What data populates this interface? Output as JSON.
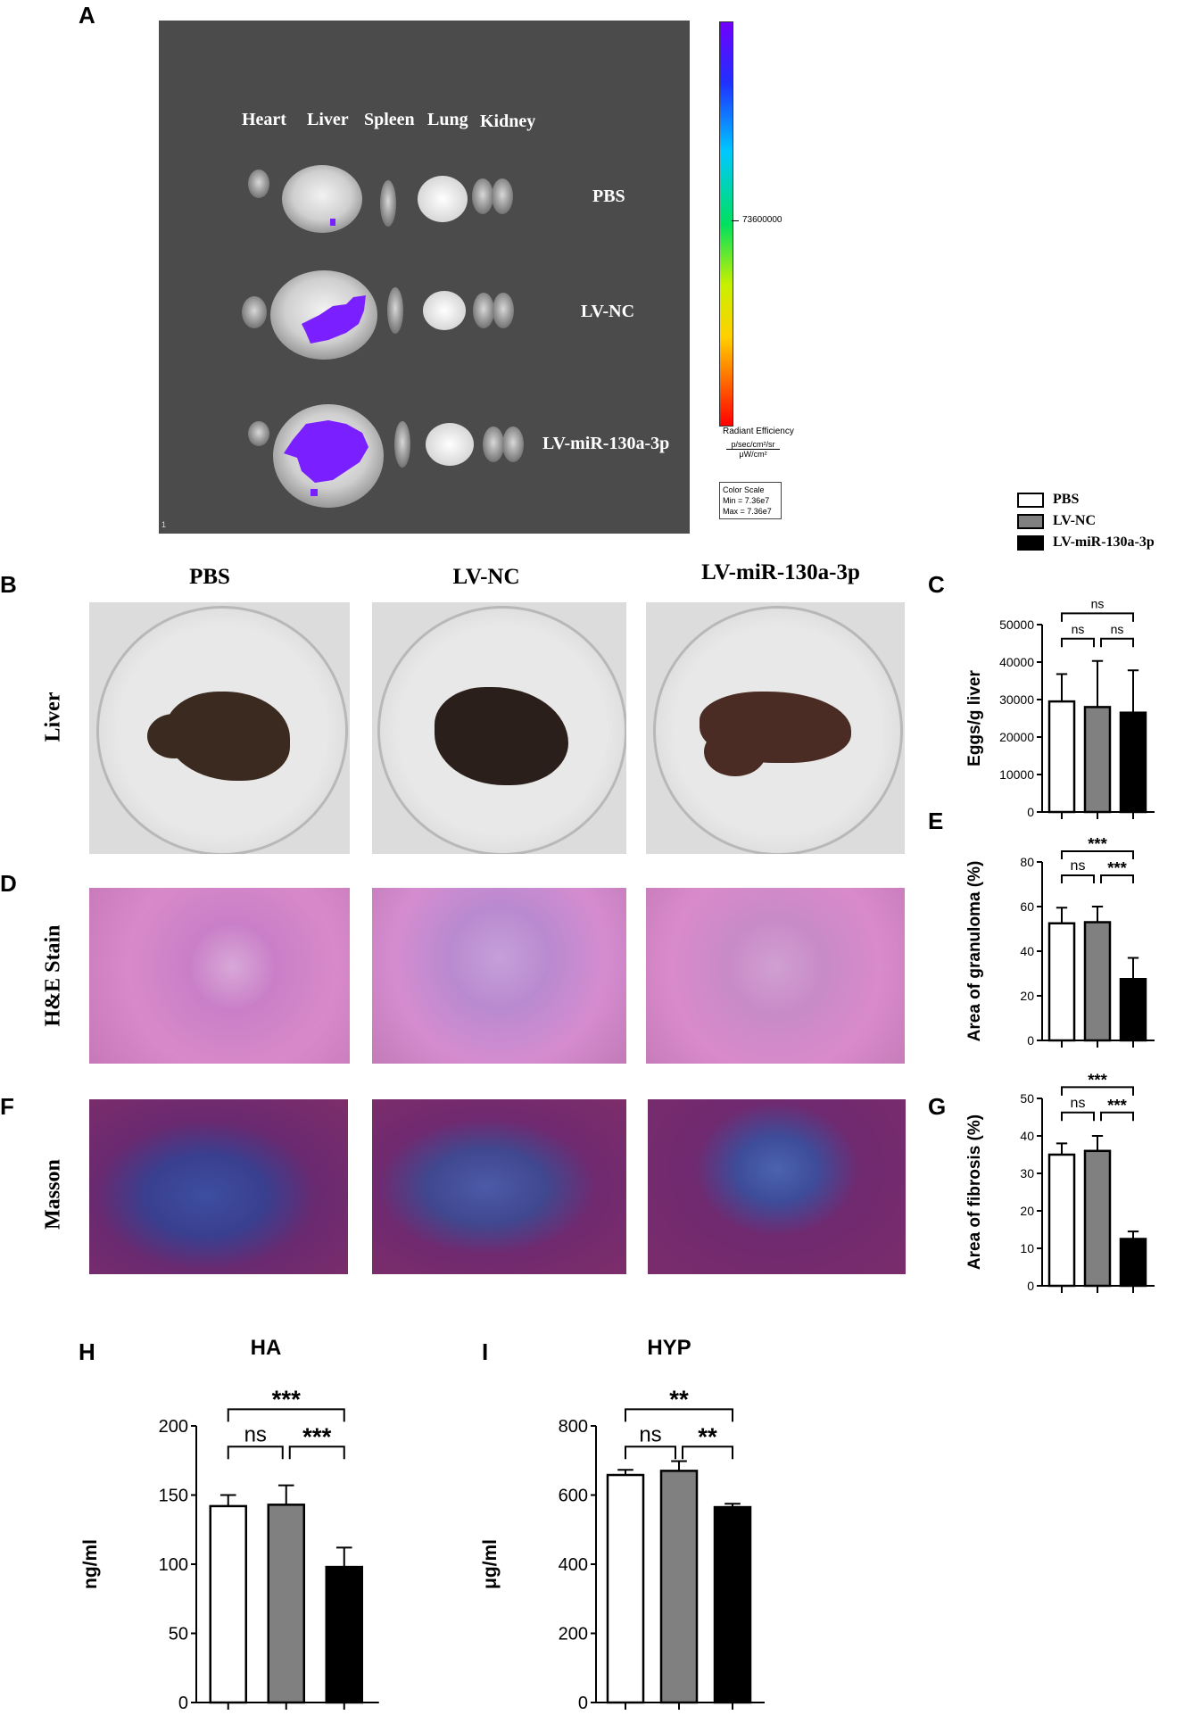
{
  "panel_letters": {
    "a": "A",
    "b": "B",
    "c": "C",
    "d": "D",
    "e": "E",
    "f": "F",
    "g": "G",
    "h": "H",
    "i": "I"
  },
  "panelA": {
    "organs": [
      "Heart",
      "Liver",
      "Spleen",
      "Lung",
      "Kidney"
    ],
    "groups": [
      "PBS",
      "LV-NC",
      "LV-miR-130a-3p"
    ],
    "scale_tick": "73600000",
    "radiant_title": "Radiant Efficiency",
    "radiant_unit_top": "p/sec/cm²/sr",
    "radiant_unit_bottom": "μW/cm²",
    "color_scale_title": "Color Scale",
    "color_scale_min": "Min = 7.36e7",
    "color_scale_max": "Max = 7.36e7",
    "corner_mark": "1",
    "colors": {
      "background": "#4a4a4a",
      "signal": "#7a1fff"
    }
  },
  "legend": {
    "items": [
      {
        "label": "PBS",
        "color": "#ffffff"
      },
      {
        "label": "LV-NC",
        "color": "#808080"
      },
      {
        "label": "LV-miR-130a-3p",
        "color": "#000000"
      }
    ]
  },
  "columns": [
    "PBS",
    "LV-NC",
    "LV-miR-130a-3p"
  ],
  "rows": {
    "liver": "Liver",
    "he": "H&E Stain",
    "masson": "Masson"
  },
  "chart_data": [
    {
      "id": "C",
      "type": "bar",
      "categories": [
        "PBS",
        "LV-NC",
        "LV-miR-130a-3p"
      ],
      "values": [
        29500,
        28000,
        26500
      ],
      "errors": [
        7300,
        12300,
        11300
      ],
      "ylabel": "Eggs/g liver",
      "ylim": [
        0,
        50000
      ],
      "yticks": [
        0,
        10000,
        20000,
        30000,
        40000,
        50000
      ],
      "colors": [
        "#ffffff",
        "#808080",
        "#000000"
      ],
      "significance": [
        {
          "from": 0,
          "to": 1,
          "label": "ns"
        },
        {
          "from": 1,
          "to": 2,
          "label": "ns"
        },
        {
          "from": 0,
          "to": 2,
          "label": "ns"
        }
      ]
    },
    {
      "id": "E",
      "type": "bar",
      "categories": [
        "PBS",
        "LV-NC",
        "LV-miR-130a-3p"
      ],
      "values": [
        52.5,
        53,
        27.5
      ],
      "errors": [
        7,
        7,
        9.5
      ],
      "ylabel": "Area of granuloma (%)",
      "ylim": [
        0,
        80
      ],
      "yticks": [
        0,
        20,
        40,
        60,
        80
      ],
      "colors": [
        "#ffffff",
        "#808080",
        "#000000"
      ],
      "significance": [
        {
          "from": 0,
          "to": 1,
          "label": "ns"
        },
        {
          "from": 1,
          "to": 2,
          "label": "***"
        },
        {
          "from": 0,
          "to": 2,
          "label": "***"
        }
      ]
    },
    {
      "id": "G",
      "type": "bar",
      "categories": [
        "PBS",
        "LV-NC",
        "LV-miR-130a-3p"
      ],
      "values": [
        35,
        36,
        12.5
      ],
      "errors": [
        3,
        4,
        2
      ],
      "ylabel": "Area of fibrosis (%)",
      "ylim": [
        0,
        50
      ],
      "yticks": [
        0,
        10,
        20,
        30,
        40,
        50
      ],
      "colors": [
        "#ffffff",
        "#808080",
        "#000000"
      ],
      "significance": [
        {
          "from": 0,
          "to": 1,
          "label": "ns"
        },
        {
          "from": 1,
          "to": 2,
          "label": "***"
        },
        {
          "from": 0,
          "to": 2,
          "label": "***"
        }
      ]
    },
    {
      "id": "H",
      "type": "bar",
      "title": "HA",
      "categories": [
        "PBS",
        "LV-NC",
        "LV-miR-130a-3p"
      ],
      "values": [
        142,
        143,
        98
      ],
      "errors": [
        8,
        14,
        14
      ],
      "ylabel": "ng/ml",
      "ylim": [
        0,
        200
      ],
      "yticks": [
        0,
        50,
        100,
        150,
        200
      ],
      "colors": [
        "#ffffff",
        "#808080",
        "#000000"
      ],
      "significance": [
        {
          "from": 0,
          "to": 1,
          "label": "ns"
        },
        {
          "from": 1,
          "to": 2,
          "label": "***"
        },
        {
          "from": 0,
          "to": 2,
          "label": "***"
        }
      ]
    },
    {
      "id": "I",
      "type": "bar",
      "title": "HYP",
      "categories": [
        "PBS",
        "LV-NC",
        "LV-miR-130a-3p"
      ],
      "values": [
        658,
        670,
        565
      ],
      "errors": [
        15,
        28,
        10
      ],
      "ylabel": "μg/ml",
      "ylim": [
        0,
        800
      ],
      "yticks": [
        0,
        200,
        400,
        600,
        800
      ],
      "colors": [
        "#ffffff",
        "#808080",
        "#000000"
      ],
      "significance": [
        {
          "from": 0,
          "to": 1,
          "label": "ns"
        },
        {
          "from": 1,
          "to": 2,
          "label": "**"
        },
        {
          "from": 0,
          "to": 2,
          "label": "**"
        }
      ]
    }
  ]
}
